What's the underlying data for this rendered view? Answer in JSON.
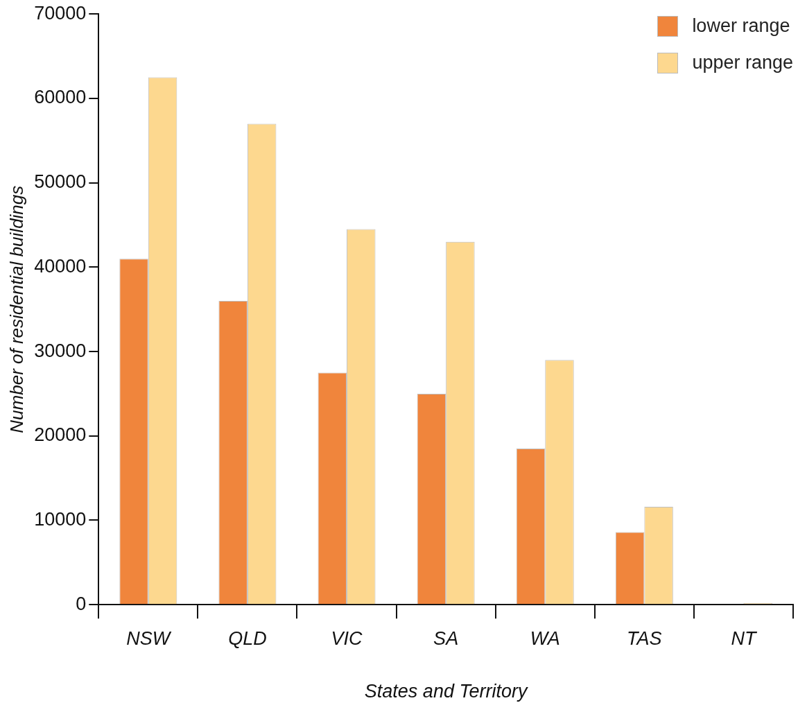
{
  "chart_data": {
    "type": "bar",
    "xlabel": "States and Territory",
    "ylabel": "Number of residential buildings",
    "categories": [
      "NSW",
      "QLD",
      "VIC",
      "SA",
      "WA",
      "TAS",
      "NT"
    ],
    "series": [
      {
        "name": "lower range",
        "color": "#f0853c",
        "values": [
          41000,
          36000,
          27500,
          25000,
          18500,
          8600,
          0
        ]
      },
      {
        "name": "upper range",
        "color": "#fdd88f",
        "values": [
          62500,
          57000,
          44500,
          43000,
          29000,
          11600,
          200
        ]
      }
    ],
    "ylim": [
      0,
      70000
    ],
    "yticks": [
      0,
      10000,
      20000,
      30000,
      40000,
      50000,
      60000,
      70000
    ],
    "grid": false,
    "legend": "top right"
  }
}
